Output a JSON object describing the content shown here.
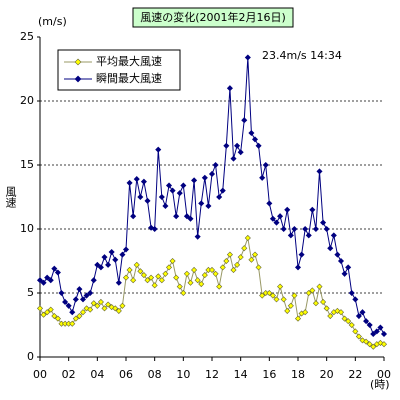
{
  "chart_data": {
    "type": "line",
    "title": "風速の変化(2001年2月16日)",
    "y_unit": "(m/s)",
    "y_label": "風速",
    "x_unit": "(時)",
    "annotation": "23.4m/s 14:34",
    "xlim": [
      0,
      24
    ],
    "ylim": [
      0,
      25
    ],
    "xticks": [
      {
        "value": 0,
        "label": "00"
      },
      {
        "value": 2,
        "label": "02"
      },
      {
        "value": 4,
        "label": "04"
      },
      {
        "value": 6,
        "label": "06"
      },
      {
        "value": 8,
        "label": "08"
      },
      10,
      12,
      14,
      16,
      18,
      20,
      22,
      {
        "value": 24,
        "label": "00"
      }
    ],
    "yticks": [
      0,
      5,
      10,
      15,
      20,
      25
    ],
    "grid": true,
    "x": [
      0,
      0.25,
      0.5,
      0.75,
      1,
      1.25,
      1.5,
      1.75,
      2,
      2.25,
      2.5,
      2.75,
      3,
      3.25,
      3.5,
      3.75,
      4,
      4.25,
      4.5,
      4.75,
      5,
      5.25,
      5.5,
      5.75,
      6,
      6.25,
      6.5,
      6.75,
      7,
      7.25,
      7.5,
      7.75,
      8,
      8.25,
      8.5,
      8.75,
      9,
      9.25,
      9.5,
      9.75,
      10,
      10.25,
      10.5,
      10.75,
      11,
      11.25,
      11.5,
      11.75,
      12,
      12.25,
      12.5,
      12.75,
      13,
      13.25,
      13.5,
      13.75,
      14,
      14.25,
      14.5,
      14.75,
      15,
      15.25,
      15.5,
      15.75,
      16,
      16.25,
      16.5,
      16.75,
      17,
      17.25,
      17.5,
      17.75,
      18,
      18.25,
      18.5,
      18.75,
      19,
      19.25,
      19.5,
      19.75,
      20,
      20.25,
      20.5,
      20.75,
      21,
      21.25,
      21.5,
      21.75,
      22,
      22.25,
      22.5,
      22.75,
      23,
      23.25,
      23.5,
      23.75,
      24
    ],
    "series": [
      {
        "name": "平均最大風速",
        "color": "#ffff00",
        "line_color": "#999966",
        "values": [
          3.8,
          3.3,
          3.5,
          3.7,
          3.2,
          3.0,
          2.6,
          2.6,
          2.6,
          2.6,
          3.0,
          3.2,
          3.5,
          3.8,
          3.7,
          4.2,
          4.0,
          4.3,
          3.8,
          4.1,
          3.9,
          3.8,
          3.6,
          4.0,
          6.2,
          6.8,
          6.0,
          7.2,
          6.7,
          6.4,
          6.0,
          6.2,
          5.6,
          6.3,
          6.0,
          6.5,
          7.0,
          7.5,
          6.2,
          5.5,
          5.0,
          6.5,
          5.8,
          6.8,
          6.0,
          5.7,
          6.4,
          6.8,
          6.8,
          6.5,
          5.5,
          7.0,
          7.5,
          8.0,
          6.8,
          7.2,
          7.8,
          8.5,
          9.3,
          7.6,
          8.0,
          7.0,
          4.8,
          5.0,
          5.0,
          4.8,
          4.5,
          5.5,
          4.5,
          3.6,
          4.0,
          4.8,
          3.0,
          3.4,
          3.5,
          5.0,
          5.2,
          4.2,
          5.5,
          4.3,
          3.8,
          3.2,
          3.5,
          3.6,
          3.5,
          3.0,
          2.8,
          2.5,
          2.0,
          1.6,
          1.3,
          1.2,
          1.0,
          0.8,
          1.0,
          1.1,
          1.0
        ]
      },
      {
        "name": "瞬間最大風速",
        "color": "#000080",
        "line_color": "#000080",
        "values": [
          6.0,
          5.8,
          6.2,
          6.0,
          6.9,
          6.6,
          5.0,
          4.3,
          4.0,
          3.5,
          4.5,
          5.3,
          4.5,
          4.8,
          5.0,
          6.0,
          7.2,
          7.0,
          7.8,
          7.2,
          8.2,
          7.6,
          5.8,
          8.0,
          8.4,
          13.6,
          11.0,
          13.9,
          12.5,
          13.7,
          12.2,
          10.1,
          10.0,
          16.2,
          12.5,
          11.8,
          13.4,
          13.0,
          11.0,
          12.8,
          13.4,
          11.0,
          10.8,
          13.8,
          9.4,
          12.0,
          14.0,
          11.8,
          14.3,
          15.0,
          12.5,
          13.0,
          16.5,
          21.0,
          15.5,
          16.5,
          16.0,
          18.5,
          23.4,
          17.5,
          17.0,
          16.5,
          14.0,
          15.0,
          12.0,
          10.8,
          10.5,
          11.0,
          10.0,
          11.5,
          9.5,
          10.0,
          7.0,
          8.0,
          10.0,
          9.5,
          11.5,
          10.0,
          14.5,
          10.5,
          10.0,
          8.5,
          9.5,
          8.0,
          7.5,
          6.5,
          7.0,
          5.0,
          4.5,
          3.2,
          3.5,
          2.8,
          2.5,
          1.8,
          2.0,
          2.3,
          1.8
        ]
      }
    ]
  }
}
